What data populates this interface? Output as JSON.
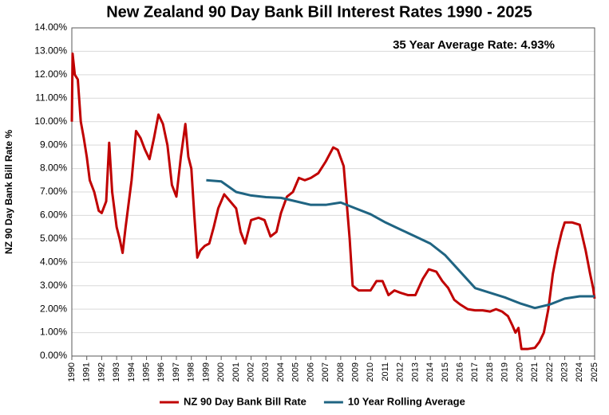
{
  "chart_data": {
    "type": "line",
    "title": "New Zealand 90 Day Bank Bill Interest Rates 1990 - 2025",
    "annotation": "35 Year Average Rate: 4.93%",
    "y_label": "NZ 90 Day Bank Bill Rate %",
    "xlim": [
      1990,
      2025
    ],
    "xticks": [
      1990,
      1991,
      1992,
      1993,
      1994,
      1995,
      1996,
      1997,
      1998,
      1999,
      2000,
      2001,
      2002,
      2003,
      2004,
      2005,
      2006,
      2007,
      2008,
      2009,
      2010,
      2011,
      2012,
      2013,
      2014,
      2015,
      2016,
      2017,
      2018,
      2019,
      2020,
      2021,
      2022,
      2023,
      2024,
      2025
    ],
    "ylim": [
      0,
      14
    ],
    "yticks": [
      {
        "value": 0,
        "label": "0.00%"
      },
      {
        "value": 1,
        "label": "1.00%"
      },
      {
        "value": 2,
        "label": "2.00%"
      },
      {
        "value": 3,
        "label": "3.00%"
      },
      {
        "value": 4,
        "label": "4.00%"
      },
      {
        "value": 5,
        "label": "5.00%"
      },
      {
        "value": 6,
        "label": "6.00%"
      },
      {
        "value": 7,
        "label": "7.00%"
      },
      {
        "value": 8,
        "label": "8.00%"
      },
      {
        "value": 9,
        "label": "9.00%"
      },
      {
        "value": 10,
        "label": "10.00%"
      },
      {
        "value": 11,
        "label": "11.00%"
      },
      {
        "value": 12,
        "label": "12.00%"
      },
      {
        "value": 13,
        "label": "13.00%"
      },
      {
        "value": 14,
        "label": "14.00%"
      }
    ],
    "grid": true,
    "legend": "bottom",
    "series": [
      {
        "name": "NZ 90 Day Bank Bill Rate",
        "color": "#c00000",
        "x": [
          1990.0,
          1990.05,
          1990.2,
          1990.4,
          1990.6,
          1990.8,
          1991.0,
          1991.2,
          1991.5,
          1991.8,
          1992.0,
          1992.3,
          1992.5,
          1992.7,
          1993.0,
          1993.2,
          1993.4,
          1993.6,
          1993.8,
          1994.0,
          1994.3,
          1994.6,
          1994.9,
          1995.2,
          1995.5,
          1995.8,
          1996.1,
          1996.4,
          1996.7,
          1997.0,
          1997.3,
          1997.6,
          1997.8,
          1998.0,
          1998.2,
          1998.4,
          1998.6,
          1998.9,
          1999.2,
          1999.5,
          1999.8,
          2000.2,
          2000.6,
          2001.0,
          2001.3,
          2001.6,
          2002.0,
          2002.5,
          2002.9,
          2003.3,
          2003.7,
          2004.0,
          2004.4,
          2004.8,
          2005.2,
          2005.6,
          2006.0,
          2006.5,
          2007.0,
          2007.5,
          2007.8,
          2008.2,
          2008.6,
          2008.8,
          2009.2,
          2009.6,
          2010.0,
          2010.4,
          2010.8,
          2011.2,
          2011.6,
          2012.0,
          2012.5,
          2013.0,
          2013.5,
          2013.9,
          2014.4,
          2014.8,
          2015.2,
          2015.6,
          2016.0,
          2016.5,
          2017.0,
          2017.5,
          2018.0,
          2018.4,
          2018.8,
          2019.2,
          2019.5,
          2019.7,
          2019.9,
          2020.1,
          2020.5,
          2021.0,
          2021.3,
          2021.6,
          2021.9,
          2022.2,
          2022.5,
          2022.8,
          2023.0,
          2023.5,
          2024.0,
          2024.4,
          2024.7,
          2024.9,
          2025.0
        ],
        "values": [
          10.0,
          12.9,
          12.0,
          11.8,
          10.0,
          9.3,
          8.5,
          7.5,
          7.0,
          6.2,
          6.1,
          6.6,
          9.1,
          7.0,
          5.5,
          5.0,
          4.4,
          5.5,
          6.5,
          7.5,
          9.6,
          9.3,
          8.8,
          8.4,
          9.3,
          10.3,
          9.9,
          9.0,
          7.3,
          6.8,
          8.5,
          9.9,
          8.5,
          8.0,
          6.0,
          4.2,
          4.5,
          4.7,
          4.8,
          5.5,
          6.3,
          6.9,
          6.6,
          6.3,
          5.3,
          4.8,
          5.8,
          5.9,
          5.8,
          5.1,
          5.3,
          6.1,
          6.8,
          7.0,
          7.6,
          7.5,
          7.6,
          7.8,
          8.3,
          8.9,
          8.8,
          8.1,
          5.0,
          3.0,
          2.8,
          2.8,
          2.8,
          3.2,
          3.2,
          2.6,
          2.8,
          2.7,
          2.6,
          2.6,
          3.3,
          3.7,
          3.6,
          3.2,
          2.9,
          2.4,
          2.2,
          2.0,
          1.95,
          1.95,
          1.9,
          2.0,
          1.9,
          1.7,
          1.3,
          1.0,
          1.2,
          0.3,
          0.3,
          0.35,
          0.6,
          1.0,
          2.0,
          3.5,
          4.5,
          5.3,
          5.7,
          5.7,
          5.6,
          4.5,
          3.5,
          2.9,
          2.45
        ]
      },
      {
        "name": "10 Year Rolling Average",
        "color": "#1f6482",
        "x": [
          1999,
          2000,
          2001,
          2002,
          2003,
          2004,
          2005,
          2006,
          2007,
          2008,
          2009,
          2010,
          2011,
          2012,
          2013,
          2014,
          2015,
          2016,
          2017,
          2018,
          2019,
          2020,
          2021,
          2022,
          2023,
          2024,
          2025
        ],
        "values": [
          7.5,
          7.45,
          7.0,
          6.85,
          6.78,
          6.75,
          6.6,
          6.45,
          6.45,
          6.55,
          6.3,
          6.05,
          5.7,
          5.4,
          5.1,
          4.8,
          4.3,
          3.6,
          2.9,
          2.7,
          2.5,
          2.25,
          2.05,
          2.2,
          2.45,
          2.55,
          2.55
        ]
      }
    ]
  }
}
